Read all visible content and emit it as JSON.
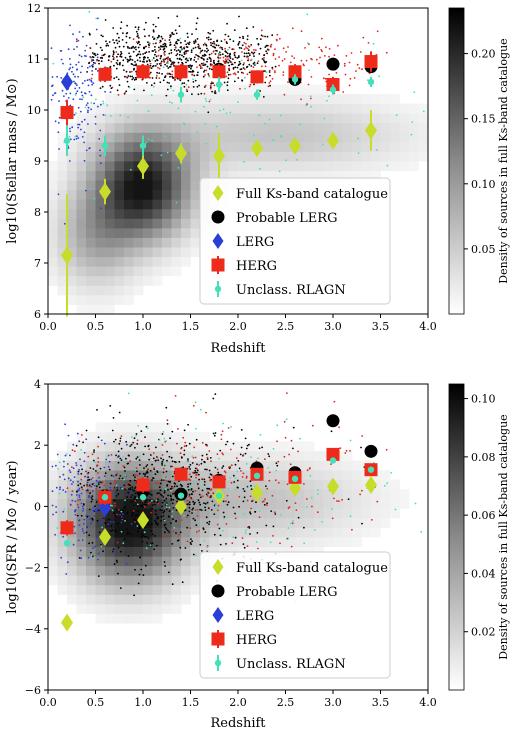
{
  "chart_data": [
    {
      "type": "scatter",
      "xlabel": "Redshift",
      "ylabel": "log10(Stellar mass / M⊙)",
      "xlim": [
        0.0,
        4.0
      ],
      "ylim": [
        6,
        12
      ],
      "xticks": [
        "0.0",
        "0.5",
        "1.0",
        "1.5",
        "2.0",
        "2.5",
        "3.0",
        "3.5",
        "4.0"
      ],
      "yticks": [
        "6",
        "7",
        "8",
        "9",
        "10",
        "11",
        "12"
      ],
      "colorbar": {
        "label": "Density of sources in full Ks-band catalogue",
        "range": [
          0.0,
          0.235
        ],
        "ticks": [
          "0.05",
          "0.10",
          "0.15",
          "0.20"
        ]
      },
      "legend_position": "lower-right",
      "series": [
        {
          "name": "Full Ks-band catalogue",
          "color": "#c8dc2a",
          "marker": "diamond",
          "x": [
            0.2,
            0.6,
            1.0,
            1.4,
            1.8,
            2.2,
            2.6,
            3.0,
            3.4
          ],
          "y": [
            7.15,
            8.4,
            8.9,
            9.15,
            9.1,
            9.25,
            9.3,
            9.4,
            9.6
          ],
          "err": [
            1.2,
            0.25,
            0.25,
            0.2,
            0.45,
            0.15,
            0.15,
            0.15,
            0.4
          ]
        },
        {
          "name": "Probable LERG",
          "color": "#000000",
          "marker": "circle",
          "x": [
            0.6,
            1.0,
            1.4,
            1.8,
            2.2,
            2.6,
            3.0,
            3.4
          ],
          "y": [
            10.7,
            10.75,
            10.75,
            10.8,
            10.65,
            10.6,
            10.9,
            10.85
          ]
        },
        {
          "name": "LERG",
          "color": "#2a3fd6",
          "marker": "diamond",
          "x": [
            0.2
          ],
          "y": [
            10.55
          ]
        },
        {
          "name": "HERG",
          "color": "#ee2a1a",
          "marker": "square",
          "x": [
            0.2,
            0.6,
            1.0,
            1.4,
            1.8,
            2.2,
            2.6,
            3.0,
            3.4
          ],
          "y": [
            9.95,
            10.7,
            10.75,
            10.75,
            10.75,
            10.65,
            10.75,
            10.5,
            10.95
          ],
          "err": [
            0.25,
            0.15,
            0.15,
            0.15,
            0.15,
            0.1,
            0.15,
            0.15,
            0.2
          ]
        },
        {
          "name": "Unclass. RLAGN",
          "color": "#45e0b8",
          "marker": "circle-small",
          "x": [
            0.2,
            0.6,
            1.0,
            1.4,
            1.8,
            2.2,
            2.6,
            3.0,
            3.4
          ],
          "y": [
            9.4,
            9.3,
            9.3,
            10.3,
            10.5,
            10.3,
            10.6,
            10.4,
            10.55
          ],
          "err": [
            0.3,
            0.2,
            0.2,
            0.15,
            0.15,
            0.1,
            0.1,
            0.1,
            0.1
          ]
        }
      ]
    },
    {
      "type": "scatter",
      "xlabel": "Redshift",
      "ylabel": "log10(SFR / M⊙ / year)",
      "xlim": [
        0.0,
        4.0
      ],
      "ylim": [
        -6,
        4
      ],
      "xticks": [
        "0.0",
        "0.5",
        "1.0",
        "1.5",
        "2.0",
        "2.5",
        "3.0",
        "3.5",
        "4.0"
      ],
      "yticks": [
        "−6",
        "−4",
        "−2",
        "0",
        "2",
        "4"
      ],
      "colorbar": {
        "label": "Density of sources in full Ks-band catalogue",
        "range": [
          0.0,
          0.105
        ],
        "ticks": [
          "0.02",
          "0.04",
          "0.06",
          "0.08",
          "0.10"
        ]
      },
      "legend_position": "lower-right",
      "series": [
        {
          "name": "Full Ks-band catalogue",
          "color": "#c8dc2a",
          "marker": "diamond",
          "x": [
            0.2,
            0.6,
            1.0,
            1.4,
            1.8,
            2.2,
            2.6,
            3.0,
            3.4
          ],
          "y": [
            -3.8,
            -1.0,
            -0.45,
            0.0,
            0.35,
            0.45,
            0.6,
            0.65,
            0.7
          ]
        },
        {
          "name": "Probable LERG",
          "color": "#000000",
          "marker": "circle",
          "x": [
            0.6,
            1.0,
            1.4,
            1.8,
            2.2,
            2.6,
            3.0,
            3.4
          ],
          "y": [
            0.35,
            0.5,
            0.4,
            0.85,
            1.25,
            1.1,
            2.8,
            1.8
          ]
        },
        {
          "name": "LERG",
          "color": "#2a3fd6",
          "marker": "diamond",
          "x": [
            0.6
          ],
          "y": [
            -0.05
          ]
        },
        {
          "name": "HERG",
          "color": "#ee2a1a",
          "marker": "square",
          "x": [
            0.2,
            0.6,
            1.0,
            1.4,
            1.8,
            2.2,
            2.6,
            3.0,
            3.4
          ],
          "y": [
            -0.7,
            0.3,
            0.7,
            1.05,
            0.8,
            1.05,
            0.95,
            1.7,
            1.2
          ],
          "err": [
            0.25,
            0.25,
            0.25,
            0.2,
            0.2,
            0.2,
            0.2,
            0.2,
            0.2
          ]
        },
        {
          "name": "Unclass. RLAGN",
          "color": "#45e0b8",
          "marker": "circle-small",
          "x": [
            0.2,
            0.6,
            1.0,
            1.4,
            1.8,
            2.2,
            2.6,
            3.0,
            3.4
          ],
          "y": [
            -1.2,
            0.3,
            0.3,
            0.35,
            0.35,
            1.0,
            0.9,
            1.5,
            1.2
          ]
        }
      ]
    }
  ]
}
